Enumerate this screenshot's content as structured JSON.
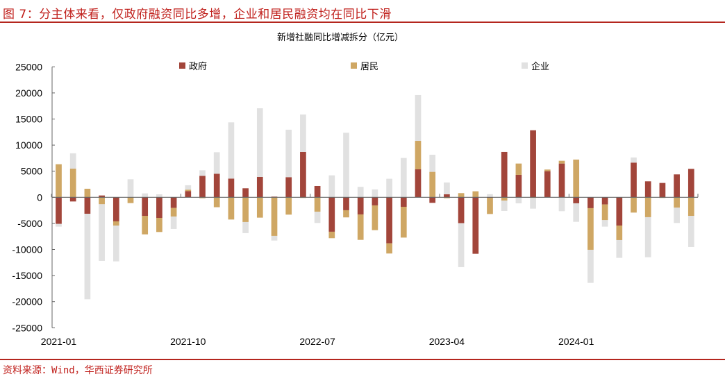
{
  "figure_title": "图 7：分主体来看，仅政府融资同比多增，企业和居民融资均在同比下滑",
  "source": "资料来源：Wind，华西证券研究所",
  "chart_data": {
    "type": "bar",
    "stacked": true,
    "title": "新增社融同比增减拆分（亿元）",
    "xlabel": "",
    "ylabel": "",
    "ylim": [
      -25000,
      25000
    ],
    "yticks": [
      "25000",
      "20000",
      "15000",
      "10000",
      "5000",
      "0",
      "-5000",
      "-10000",
      "-15000",
      "-20000",
      "-25000"
    ],
    "yticks_values": [
      25000,
      20000,
      15000,
      10000,
      5000,
      0,
      -5000,
      -10000,
      -15000,
      -20000,
      -25000
    ],
    "xtick_labels": [
      "2021-01",
      "2021-10",
      "2022-07",
      "2023-04",
      "2024-01"
    ],
    "xtick_indices": [
      0,
      9,
      18,
      27,
      36
    ],
    "grid": false,
    "legend_placement": "top",
    "categories": [
      "2021-01",
      "2021-02",
      "2021-03",
      "2021-04",
      "2021-05",
      "2021-06",
      "2021-07",
      "2021-08",
      "2021-09",
      "2021-10",
      "2021-11",
      "2021-12",
      "2022-01",
      "2022-02",
      "2022-03",
      "2022-04",
      "2022-05",
      "2022-06",
      "2022-07",
      "2022-08",
      "2022-09",
      "2022-10",
      "2022-11",
      "2022-12",
      "2023-01",
      "2023-02",
      "2023-03",
      "2023-04",
      "2023-05",
      "2023-06",
      "2023-07",
      "2023-08",
      "2023-09",
      "2023-10",
      "2023-11",
      "2023-12",
      "2024-01",
      "2024-02",
      "2024-03",
      "2024-04",
      "2024-05",
      "2024-06",
      "2024-07",
      "2024-08",
      "2024-09"
    ],
    "series": [
      {
        "name": "政府",
        "color": "#a2453a",
        "values": [
          -5100,
          -800,
          -3150,
          350,
          -4610,
          0,
          -3550,
          -3950,
          -2040,
          1200,
          4120,
          4520,
          3590,
          1730,
          3900,
          130,
          3860,
          8690,
          2170,
          -6600,
          -2480,
          -3280,
          -1550,
          -8820,
          -1820,
          5360,
          -1060,
          580,
          -4960,
          -10820,
          -100,
          8690,
          4300,
          12850,
          5010,
          6470,
          -1150,
          -2080,
          -1370,
          -5410,
          6650,
          3060,
          2750,
          4390,
          5450
        ]
      },
      {
        "name": "居民",
        "color": "#cfa764",
        "values": [
          6340,
          5500,
          1640,
          -1330,
          -800,
          -1110,
          -3550,
          -2700,
          -1640,
          270,
          -180,
          -1900,
          -4260,
          -4740,
          -3900,
          -7400,
          -3320,
          -130,
          -2750,
          -1240,
          -1370,
          -4880,
          -4740,
          -1950,
          -5900,
          5450,
          4880,
          -180,
          800,
          1150,
          -3100,
          -620,
          2170,
          -130,
          310,
          530,
          7230,
          -7980,
          -3010,
          -2790,
          -2930,
          -3810,
          -130,
          -1990,
          -3550
        ]
      },
      {
        "name": "企业",
        "color": "#e1e1e1",
        "values": [
          -530,
          2930,
          -16400,
          -10860,
          -6870,
          3460,
          750,
          580,
          -2390,
          840,
          1060,
          4120,
          10770,
          -2130,
          13160,
          -890,
          9090,
          7180,
          -2170,
          4210,
          12370,
          2000,
          1510,
          3550,
          7540,
          8780,
          3280,
          2260,
          -8420,
          0,
          600,
          -2000,
          -1150,
          -2040,
          0,
          -2660,
          -3550,
          -6340,
          -1240,
          -3410,
          980,
          -7670,
          0,
          -2930,
          -5980
        ]
      }
    ]
  }
}
